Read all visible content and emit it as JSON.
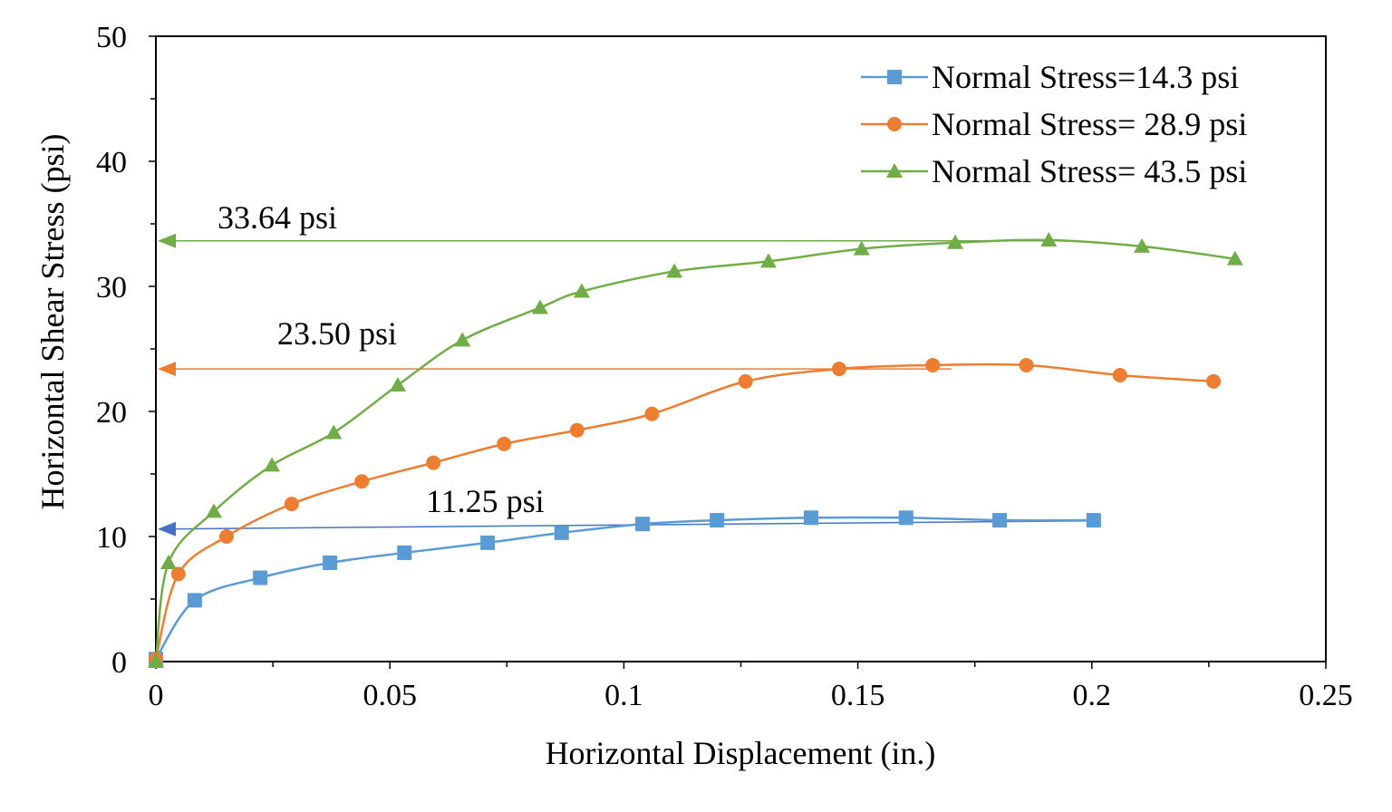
{
  "chart_data": {
    "type": "line",
    "xlabel": "Horizontal Displacement (in.)",
    "ylabel": "Horizontal Shear Stress (psi)",
    "xlim": [
      0,
      0.25
    ],
    "ylim": [
      0,
      50
    ],
    "xticks": [
      0,
      0.05,
      0.1,
      0.15,
      0.2,
      0.25
    ],
    "xtick_labels": [
      "0",
      "0.05",
      "0.1",
      "0.15",
      "0.2",
      "0.25"
    ],
    "yticks": [
      0,
      10,
      20,
      30,
      40,
      50
    ],
    "ytick_labels": [
      "0",
      "10",
      "20",
      "30",
      "40",
      "50"
    ],
    "grid": false,
    "legend_position": "top-right",
    "series": [
      {
        "name": "Normal Stress=14.3 psi",
        "color": "#5B9BD5",
        "marker": "square",
        "x": [
          0,
          0.0083,
          0.0223,
          0.0372,
          0.0531,
          0.0709,
          0.0867,
          0.104,
          0.1199,
          0.14,
          0.1603,
          0.1803,
          0.2004
        ],
        "y": [
          0.2,
          4.9,
          6.7,
          7.9,
          8.7,
          9.5,
          10.3,
          11.0,
          11.3,
          11.5,
          11.5,
          11.3,
          11.3
        ]
      },
      {
        "name": "Normal Stress= 28.9 psi",
        "color": "#ED7D31",
        "marker": "circle",
        "x": [
          0,
          0.0048,
          0.0151,
          0.029,
          0.044,
          0.0593,
          0.0744,
          0.09,
          0.106,
          0.126,
          0.146,
          0.166,
          0.186,
          0.206,
          0.226
        ],
        "y": [
          0.2,
          7.0,
          10.0,
          12.6,
          14.4,
          15.9,
          17.4,
          18.5,
          19.8,
          22.4,
          23.4,
          23.7,
          23.7,
          22.9,
          22.4
        ]
      },
      {
        "name": "Normal Stress= 43.5 psi",
        "color": "#70AD47",
        "marker": "triangle",
        "x": [
          0,
          0.0027,
          0.0124,
          0.0248,
          0.038,
          0.0517,
          0.0655,
          0.0821,
          0.091,
          0.1108,
          0.1309,
          0.1508,
          0.1708,
          0.1908,
          0.2107,
          0.2306
        ],
        "y": [
          0,
          7.9,
          12.0,
          15.7,
          18.3,
          22.1,
          25.7,
          28.3,
          29.6,
          31.2,
          32.0,
          33.0,
          33.5,
          33.7,
          33.2,
          32.2
        ]
      }
    ],
    "annotations": [
      {
        "text": "33.64 psi",
        "color": "#70AD47",
        "arrow_from": [
          0.19,
          33.64
        ],
        "arrow_to": [
          0,
          33.64
        ]
      },
      {
        "text": "23.50 psi",
        "color": "#ED7D31",
        "arrow_from": [
          0.17,
          23.4
        ],
        "arrow_to": [
          0,
          23.4
        ]
      },
      {
        "text": "11.25 psi",
        "color": "#4472C4",
        "arrow_from": [
          0.2,
          11.25
        ],
        "arrow_to": [
          0,
          10.6
        ]
      }
    ]
  }
}
